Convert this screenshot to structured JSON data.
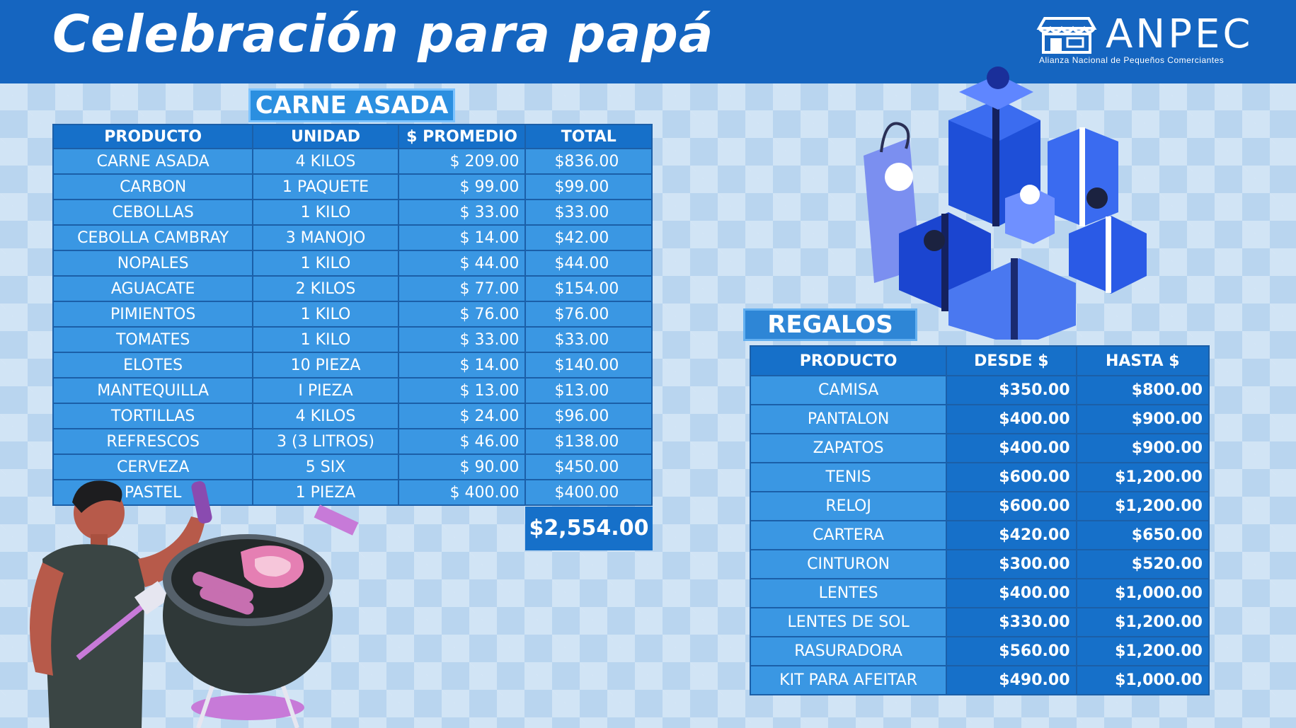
{
  "header": {
    "title": "Celebración para papá",
    "logo_text": "ANPEC",
    "logo_subtitle": "Alianza Nacional de Pequeños Comerciantes"
  },
  "carne_asada": {
    "tag": "CARNE ASADA",
    "columns": [
      "PRODUCTO",
      "UNIDAD",
      "$ PROMEDIO",
      "TOTAL"
    ],
    "rows": [
      [
        "CARNE ASADA",
        "4 KILOS",
        "$ 209.00",
        "$836.00"
      ],
      [
        "CARBON",
        "1 PAQUETE",
        "$   99.00",
        "$99.00"
      ],
      [
        "CEBOLLAS",
        "1 KILO",
        "$   33.00",
        "$33.00"
      ],
      [
        "CEBOLLA CAMBRAY",
        "3 MANOJO",
        "$   14.00",
        "$42.00"
      ],
      [
        "NOPALES",
        "1 KILO",
        "$   44.00",
        "$44.00"
      ],
      [
        "AGUACATE",
        "2 KILOS",
        "$   77.00",
        "$154.00"
      ],
      [
        "PIMIENTOS",
        "1 KILO",
        "$   76.00",
        "$76.00"
      ],
      [
        "TOMATES",
        "1 KILO",
        "$   33.00",
        "$33.00"
      ],
      [
        "ELOTES",
        "10 PIEZA",
        "$   14.00",
        "$140.00"
      ],
      [
        "MANTEQUILLA",
        "I PIEZA",
        "$   13.00",
        "$13.00"
      ],
      [
        "TORTILLAS",
        "4 KILOS",
        "$   24.00",
        "$96.00"
      ],
      [
        "REFRESCOS",
        "3 (3 LITROS)",
        "$   46.00",
        "$138.00"
      ],
      [
        "CERVEZA",
        "5 SIX",
        "$   90.00",
        "$450.00"
      ],
      [
        "PASTEL",
        "1 PIEZA",
        "$ 400.00",
        "$400.00"
      ]
    ],
    "grand_total": "$2,554.00"
  },
  "regalos": {
    "tag": "REGALOS",
    "columns": [
      "PRODUCTO",
      "DESDE $",
      "HASTA $"
    ],
    "rows": [
      [
        "CAMISA",
        "$350.00",
        "$800.00"
      ],
      [
        "PANTALON",
        "$400.00",
        "$900.00"
      ],
      [
        "ZAPATOS",
        "$400.00",
        "$900.00"
      ],
      [
        "TENIS",
        "$600.00",
        "$1,200.00"
      ],
      [
        "RELOJ",
        "$600.00",
        "$1,200.00"
      ],
      [
        "CARTERA",
        "$420.00",
        "$650.00"
      ],
      [
        "CINTURON",
        "$300.00",
        "$520.00"
      ],
      [
        "LENTES",
        "$400.00",
        "$1,000.00"
      ],
      [
        "LENTES DE SOL",
        "$330.00",
        "$1,200.00"
      ],
      [
        "RASURADORA",
        "$560.00",
        "$1,200.00"
      ],
      [
        "KIT PARA AFEITAR",
        "$490.00",
        "$1,000.00"
      ]
    ]
  },
  "illustrations": [
    "gift-boxes-illustration",
    "man-grilling-illustration"
  ],
  "colors": {
    "header_blue": "#1565c0",
    "cell_blue": "#3a97e3",
    "header_cell_blue": "#1670c9",
    "background": "#b9d5ef"
  }
}
